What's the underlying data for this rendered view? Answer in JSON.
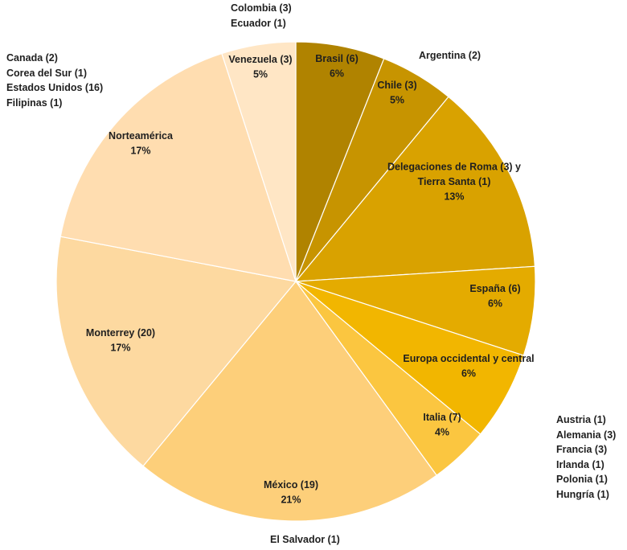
{
  "chart_data": {
    "type": "pie",
    "title": "",
    "slices": [
      {
        "name": "Brasil (6)",
        "percent_label": "6%",
        "value": 6,
        "color": "#b08300"
      },
      {
        "name": "Chile (3)",
        "percent_label": "5%",
        "value": 5,
        "color": "#c79400"
      },
      {
        "name": "Delegaciones de Roma (3) y Tierra Santa (1)",
        "percent_label": "13%",
        "value": 13,
        "color": "#d9a200"
      },
      {
        "name": "España (6)",
        "percent_label": "6%",
        "value": 6,
        "color": "#e4ab00"
      },
      {
        "name": "Europa occidental y central",
        "percent_label": "6%",
        "value": 6,
        "color": "#f2b600"
      },
      {
        "name": "Italia (7)",
        "percent_label": "4%",
        "value": 4,
        "color": "#fbc640"
      },
      {
        "name": "México (19)",
        "percent_label": "21%",
        "value": 21,
        "color": "#fdcf7a"
      },
      {
        "name": "Monterrey (20)",
        "percent_label": "17%",
        "value": 17,
        "color": "#fdd9a0"
      },
      {
        "name": "Norteamérica",
        "percent_label": "17%",
        "value": 17,
        "color": "#ffddb0"
      },
      {
        "name": "Venezuela (3)",
        "percent_label": "5%",
        "value": 5,
        "color": "#ffe6c5"
      }
    ],
    "annotations": {
      "top": [
        "Colombia (3)",
        "Ecuador (1)"
      ],
      "argentina": "Argentina (2)",
      "north_america": [
        "Canada (2)",
        "Corea del Sur (1)",
        "Estados Unidos (16)",
        "Filipinas (1)"
      ],
      "europe": [
        "Austria (1)",
        "Alemania (3)",
        "Francia (3)",
        "Irlanda (1)",
        "Polonia (1)",
        "Hungría (1)"
      ],
      "el_salvador": "El Salvador (1)"
    }
  }
}
